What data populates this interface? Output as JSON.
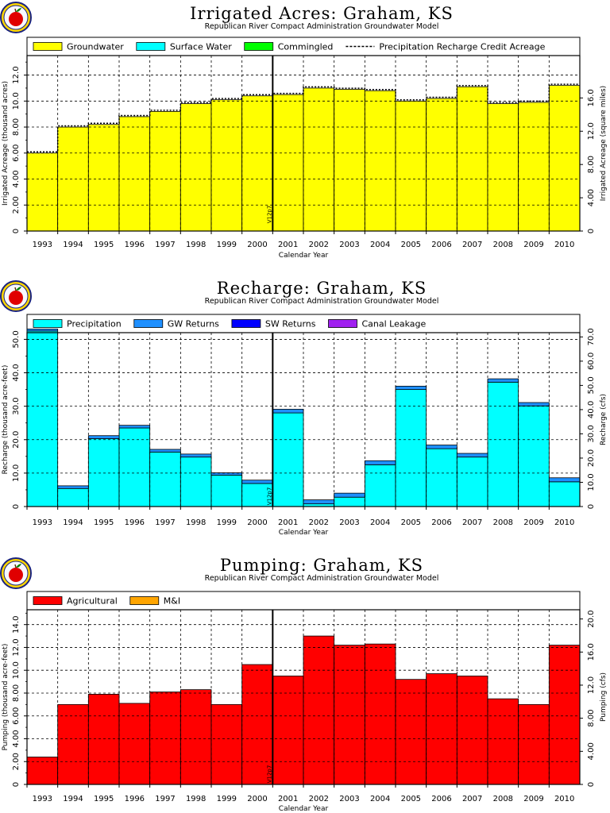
{
  "chart_data": [
    {
      "type": "bar",
      "title": "Irrigated Acres: Graham, KS",
      "subtitle": "Republican River Compact Administration Groundwater Model",
      "xlabel": "Calendar Year",
      "ylabel": "Irrigated Acreage (thousand acres)",
      "ylabel_right": "Irrigated Acreage (square miles)",
      "categories": [
        "1993",
        "1994",
        "1995",
        "1996",
        "1997",
        "1998",
        "1999",
        "2000",
        "2001",
        "2002",
        "2003",
        "2004",
        "2005",
        "2006",
        "2007",
        "2008",
        "2009",
        "2010"
      ],
      "ylim": [
        0,
        13.5
      ],
      "yticks": [
        "0",
        "2.00",
        "4.00",
        "6.00",
        "8.00",
        "10.0",
        "12.0"
      ],
      "yticks_right": [
        "0",
        "4.00",
        "8.00",
        "12.0",
        "16.0"
      ],
      "right_scale": 1.5625,
      "stacked": true,
      "series": [
        {
          "name": "Groundwater",
          "color": "#ffff00",
          "values": [
            6.0,
            8.0,
            8.2,
            8.8,
            9.2,
            9.8,
            10.1,
            10.4,
            10.5,
            11.0,
            10.9,
            10.8,
            10.0,
            10.2,
            11.1,
            9.8,
            9.9,
            11.2
          ]
        },
        {
          "name": "Surface Water",
          "color": "#00ffff",
          "values": [
            0,
            0,
            0,
            0,
            0,
            0,
            0,
            0,
            0,
            0,
            0,
            0,
            0,
            0,
            0,
            0,
            0,
            0
          ]
        },
        {
          "name": "Commingled",
          "color": "#00ff00",
          "values": [
            0,
            0,
            0,
            0,
            0,
            0,
            0,
            0,
            0,
            0,
            0,
            0,
            0,
            0,
            0,
            0,
            0,
            0
          ]
        }
      ],
      "line_series": {
        "name": "Precipitation Recharge Credit Acreage",
        "values": [
          6.0,
          8.0,
          8.2,
          8.8,
          9.2,
          9.8,
          10.1,
          10.4,
          10.5,
          11.0,
          10.9,
          10.8,
          10.0,
          10.2,
          11.1,
          9.8,
          9.9,
          11.2
        ]
      },
      "marker": {
        "label": "V12p7",
        "x": 2000.5
      },
      "legend": "top",
      "grid": true
    },
    {
      "type": "bar",
      "title": "Recharge: Graham, KS",
      "subtitle": "Republican River Compact Administration Groundwater Model",
      "xlabel": "Calendar Year",
      "ylabel": "Recharge (thousand acre-feet)",
      "ylabel_right": "Recharge (cfs)",
      "categories": [
        "1993",
        "1994",
        "1995",
        "1996",
        "1997",
        "1998",
        "1999",
        "2000",
        "2001",
        "2002",
        "2003",
        "2004",
        "2005",
        "2006",
        "2007",
        "2008",
        "2009",
        "2010"
      ],
      "ylim": [
        0,
        52
      ],
      "yticks": [
        "0",
        "10.0",
        "20.0",
        "30.0",
        "40.0",
        "50.0"
      ],
      "yticks_right": [
        "0",
        "10.0",
        "20.0",
        "30.0",
        "40.0",
        "50.0",
        "60.0",
        "70.0"
      ],
      "right_scale": 1.38,
      "stacked": true,
      "series": [
        {
          "name": "Precipitation",
          "color": "#00ffff",
          "values": [
            52.5,
            5.4,
            20.3,
            23.5,
            16.3,
            14.8,
            9.4,
            6.9,
            28.0,
            0.8,
            2.8,
            12.5,
            35.0,
            17.3,
            14.8,
            37.2,
            30.1,
            7.4
          ]
        },
        {
          "name": "GW Returns",
          "color": "#1e90ff",
          "values": [
            0.6,
            0.8,
            0.9,
            0.8,
            0.8,
            0.9,
            0.7,
            1.0,
            1.1,
            1.2,
            1.2,
            1.2,
            1.0,
            1.1,
            1.1,
            1.0,
            1.0,
            1.2
          ]
        },
        {
          "name": "SW Returns",
          "color": "#0000ff",
          "values": [
            0,
            0,
            0,
            0,
            0,
            0,
            0,
            0,
            0,
            0,
            0,
            0,
            0,
            0,
            0,
            0,
            0,
            0
          ]
        },
        {
          "name": "Canal Leakage",
          "color": "#a020f0",
          "values": [
            0,
            0,
            0,
            0,
            0,
            0,
            0,
            0,
            0,
            0,
            0,
            0,
            0,
            0,
            0,
            0,
            0,
            0
          ]
        }
      ],
      "marker": {
        "label": "V12p7",
        "x": 2000.5
      },
      "legend": "top",
      "grid": true
    },
    {
      "type": "bar",
      "title": "Pumping: Graham, KS",
      "subtitle": "Republican River Compact Administration Groundwater Model",
      "xlabel": "Calendar Year",
      "ylabel": "Pumping (thousand acre-feet)",
      "ylabel_right": "Pumping (cfs)",
      "categories": [
        "1993",
        "1994",
        "1995",
        "1996",
        "1997",
        "1998",
        "1999",
        "2000",
        "2001",
        "2002",
        "2003",
        "2004",
        "2005",
        "2006",
        "2007",
        "2008",
        "2009",
        "2010"
      ],
      "ylim": [
        0,
        15.3
      ],
      "yticks": [
        "0",
        "2.00",
        "4.00",
        "6.00",
        "8.00",
        "10.0",
        "12.0",
        "14.0"
      ],
      "yticks_right": [
        "0",
        "4.00",
        "8.00",
        "12.0",
        "16.0",
        "20.0"
      ],
      "right_scale": 1.38,
      "stacked": true,
      "series": [
        {
          "name": "Agricultural",
          "color": "#ff0000",
          "values": [
            2.4,
            7.0,
            7.9,
            7.1,
            8.1,
            8.3,
            7.0,
            10.5,
            9.5,
            13.0,
            12.2,
            12.3,
            9.2,
            9.7,
            9.5,
            7.5,
            7.0,
            12.2
          ]
        },
        {
          "name": "M&I",
          "color": "#ffa500",
          "values": [
            0,
            0,
            0,
            0,
            0,
            0,
            0,
            0,
            0,
            0,
            0,
            0,
            0,
            0,
            0,
            0,
            0,
            0
          ]
        }
      ],
      "marker": {
        "label": "V12p7",
        "x": 2000.5
      },
      "legend": "top",
      "grid": true
    }
  ]
}
